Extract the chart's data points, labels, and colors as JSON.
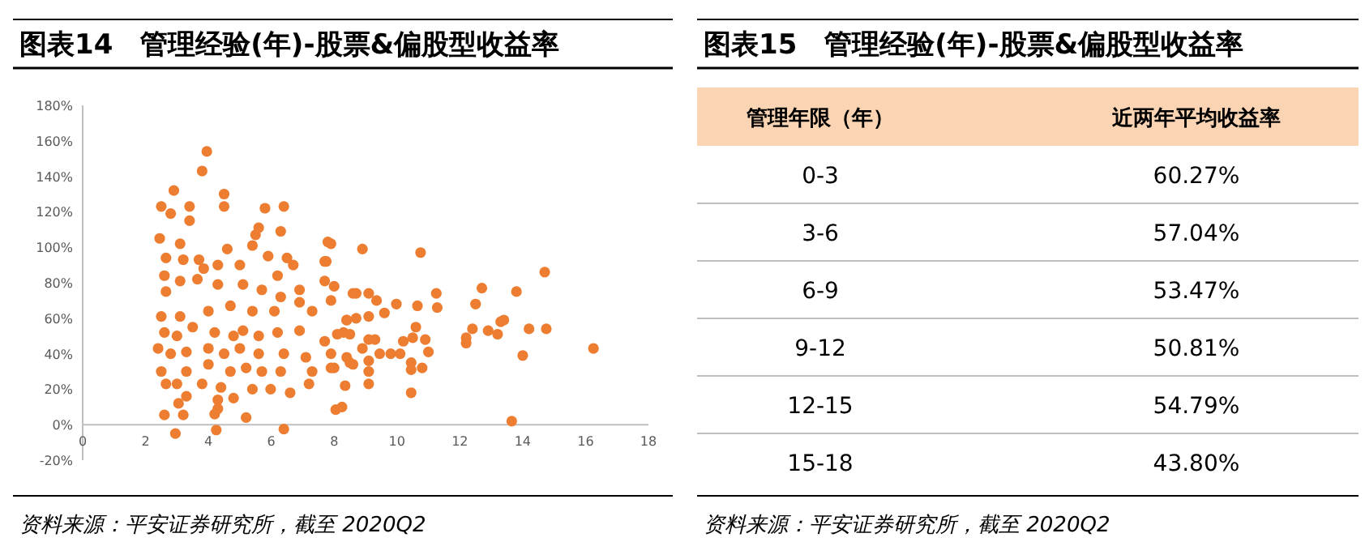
{
  "chart_data": [
    {
      "type": "scatter",
      "title": "图表14　管理经验(年)-股票&偏股型收益率",
      "color": "#ed7d31",
      "grid": false,
      "xlim": [
        0,
        18
      ],
      "xticks": [
        0,
        2,
        4,
        6,
        8,
        10,
        12,
        14,
        16,
        18
      ],
      "ylim": [
        -20,
        180
      ],
      "yticks": [
        {
          "value": -20,
          "label": "-20%"
        },
        {
          "value": 0,
          "label": "0%"
        },
        {
          "value": 20,
          "label": "20%"
        },
        {
          "value": 40,
          "label": "40%"
        },
        {
          "value": 60,
          "label": "60%"
        },
        {
          "value": 80,
          "label": "80%"
        },
        {
          "value": 100,
          "label": "100%"
        },
        {
          "value": 120,
          "label": "120%"
        },
        {
          "value": 140,
          "label": "140%"
        },
        {
          "value": 160,
          "label": "160%"
        },
        {
          "value": 180,
          "label": "180%"
        }
      ],
      "x": [
        3.95,
        3.8,
        2.9,
        4.5,
        4.5,
        2.5,
        2.8,
        3.4,
        3.4,
        5.8,
        6.4,
        2.45,
        5.6,
        6.3,
        5.5,
        3.1,
        4.6,
        7.8,
        5.4,
        2.65,
        3.2,
        3.7,
        2.6,
        3.85,
        4.3,
        5.0,
        5.9,
        6.5,
        6.7,
        6.2,
        7.7,
        2.65,
        3.1,
        3.65,
        4.3,
        5.1,
        5.7,
        6.9,
        7.7,
        8.0,
        8.6,
        6.3,
        2.5,
        3.1,
        4.0,
        4.7,
        5.4,
        6.1,
        6.9,
        7.3,
        7.9,
        8.4,
        2.6,
        3.0,
        3.5,
        4.2,
        4.8,
        5.1,
        5.6,
        6.2,
        6.9,
        7.7,
        8.3,
        2.4,
        2.8,
        3.3,
        4.0,
        4.5,
        5.0,
        5.6,
        6.4,
        7.1,
        7.9,
        8.5,
        2.5,
        3.3,
        4.0,
        4.7,
        5.2,
        5.7,
        6.3,
        7.3,
        7.9,
        2.65,
        3.8,
        4.4,
        5.4,
        5.98,
        6.6,
        7.2,
        3.0,
        3.3,
        3.05,
        4.3,
        4.8,
        2.6,
        3.2,
        4.2,
        5.2,
        2.95,
        4.25,
        6.4,
        4.3,
        7.9,
        8.9,
        10.75,
        14.7,
        7.75,
        12.7,
        13.8,
        11.25,
        8.7,
        9.1,
        9.35,
        9.98,
        10.65,
        11.28,
        12.5,
        9.6,
        8.7,
        8.4,
        9.1,
        13.3,
        13.4,
        10.6,
        12.4,
        12.9,
        14.2,
        14.75,
        13.2,
        12.2,
        12.2,
        16.25,
        8.1,
        8.5,
        9.1,
        9.3,
        10.2,
        10.5,
        10.9,
        8.9,
        9.45,
        9.8,
        10.1,
        11.0,
        8.4,
        8.6,
        9.1,
        10.45,
        10.8,
        10.45,
        9.1,
        8.0,
        14.0,
        8.35,
        9.1,
        10.45,
        8.05,
        8.25,
        13.65
      ],
      "values": [
        154,
        143,
        132,
        130,
        123,
        123,
        119,
        123,
        115,
        122,
        123,
        105,
        111,
        109,
        107,
        102,
        99,
        103,
        101,
        94,
        93,
        93,
        84,
        88,
        90,
        90,
        95,
        94,
        90,
        84,
        92,
        75,
        81,
        82,
        79,
        79,
        76,
        76,
        81,
        78,
        74,
        72,
        61,
        61,
        64,
        67,
        64,
        64,
        69,
        64,
        70,
        59,
        52,
        50,
        55,
        52,
        50,
        53,
        50,
        52,
        53,
        47,
        52,
        43,
        40,
        41,
        43,
        40,
        43,
        40,
        40,
        38,
        40,
        35,
        30,
        30,
        34,
        30,
        32,
        30,
        30,
        30,
        32,
        23,
        23,
        21,
        20,
        20,
        18,
        23,
        23,
        16,
        12,
        14,
        15,
        5.5,
        5.5,
        6,
        4,
        -5,
        -3,
        -2.5,
        9,
        102,
        99,
        97,
        86,
        92,
        77,
        75,
        74,
        74,
        74,
        70,
        68,
        67,
        66,
        68,
        63,
        60,
        59,
        61,
        58,
        59,
        55,
        54,
        53,
        54,
        54,
        51,
        49,
        46,
        43,
        51,
        51,
        48,
        48,
        47,
        49,
        48,
        43,
        40,
        40,
        40,
        41,
        38,
        34,
        36,
        35,
        32,
        31,
        30,
        32,
        39,
        22,
        23,
        18,
        8.5,
        10,
        2
      ],
      "annotations": [
        "资料来源：平安证券研究所，截至 2020Q2"
      ]
    },
    {
      "type": "other",
      "title": "图表15　管理经验(年)-股票&偏股型收益率",
      "categories": [
        "0-3",
        "3-6",
        "6-9",
        "9-12",
        "12-15",
        "15-18"
      ],
      "values": [
        60.27,
        57.04,
        53.47,
        50.81,
        54.79,
        43.8
      ],
      "value_labels": [
        "60.27%",
        "57.04%",
        "53.47%",
        "50.81%",
        "54.79%",
        "43.80%"
      ],
      "annotations": [
        "管理年限（年）",
        "近两年平均收益率",
        "资料来源：平安证券研究所，截至 2020Q2"
      ]
    }
  ]
}
